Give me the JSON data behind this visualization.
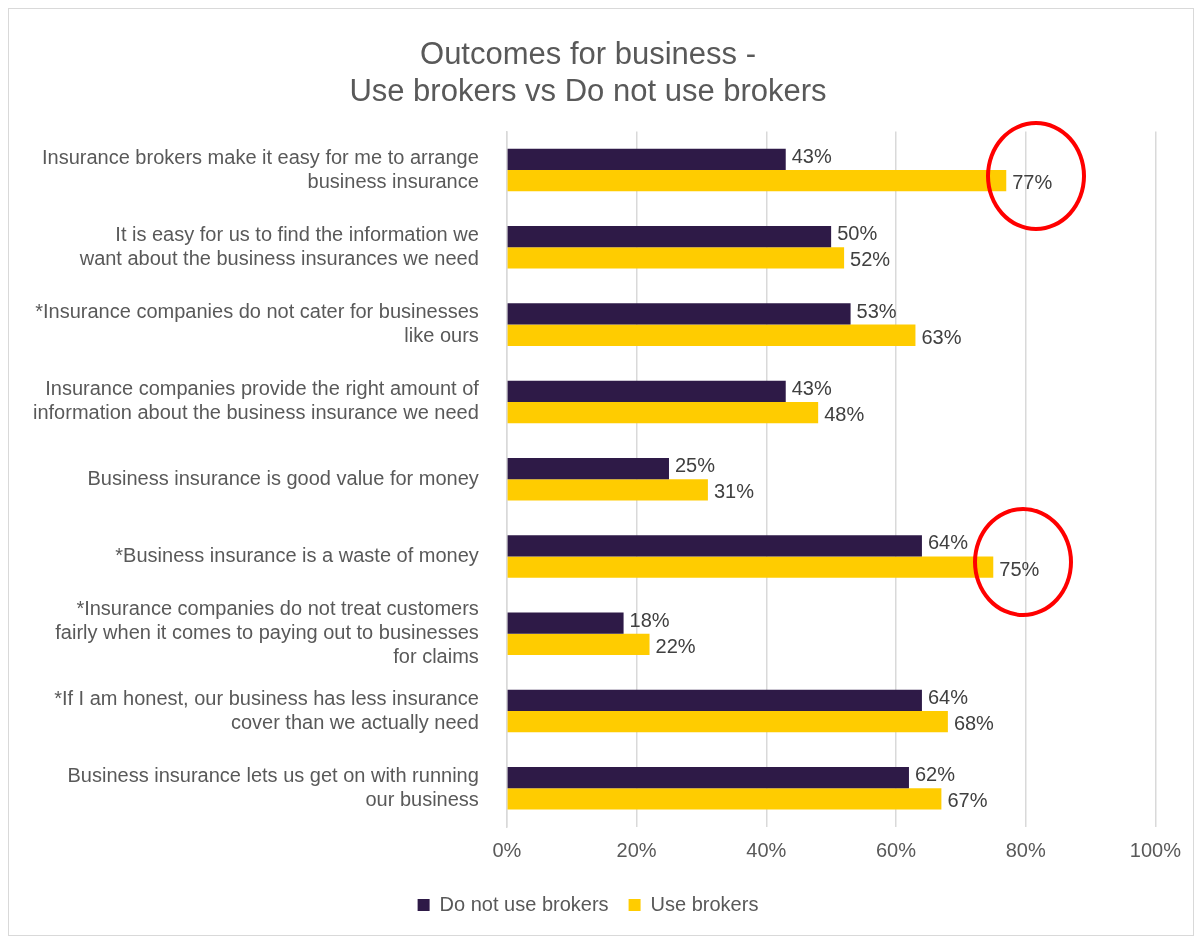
{
  "chart_data": {
    "type": "bar",
    "orientation": "horizontal",
    "title": "Outcomes for business -\nUse brokers vs Do not use brokers",
    "categories": [
      "Insurance brokers make it easy for me to arrange business insurance",
      "It is easy for us to find the information we want about the business insurances we need",
      "*Insurance companies do not cater for businesses like ours",
      "Insurance companies provide the right amount of information about the business insurance we need",
      "Business insurance is good value for money",
      "*Business insurance is a waste of money",
      "*Insurance companies do not treat customers fairly when it comes to paying out to businesses for claims",
      "*If I am honest, our business has less insurance cover than we actually need",
      "Business insurance lets us get on with running our business"
    ],
    "series": [
      {
        "name": "Do not use brokers",
        "color": "#2e1a47",
        "values": [
          43,
          50,
          53,
          43,
          25,
          64,
          18,
          64,
          62
        ],
        "value_labels": [
          "43%",
          "50%",
          "53%",
          "43%",
          "25%",
          "64%",
          "18%",
          "64%",
          "62%"
        ]
      },
      {
        "name": "Use brokers",
        "color": "#ffcc00",
        "values": [
          77,
          52,
          63,
          48,
          31,
          75,
          22,
          68,
          67
        ],
        "value_labels": [
          "77%",
          "52%",
          "63%",
          "48%",
          "31%",
          "75%",
          "22%",
          "68%",
          "67%"
        ]
      }
    ],
    "xlim": [
      0,
      100
    ],
    "xticks": [
      {
        "value": 0,
        "label": "0%"
      },
      {
        "value": 20,
        "label": "20%"
      },
      {
        "value": 40,
        "label": "40%"
      },
      {
        "value": 60,
        "label": "60%"
      },
      {
        "value": 80,
        "label": "80%"
      },
      {
        "value": 100,
        "label": "100%"
      }
    ],
    "grid": "x",
    "legend": "bottom"
  }
}
